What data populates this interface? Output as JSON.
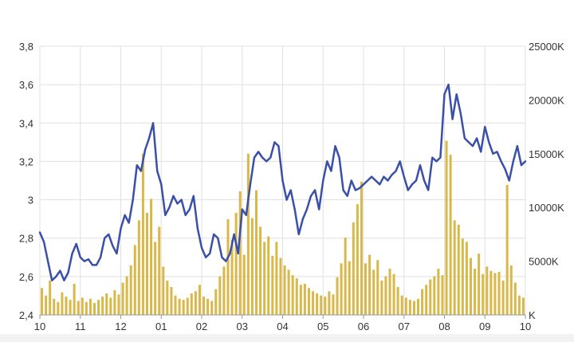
{
  "chart_data": {
    "type": "line",
    "title": "",
    "xlabel": "",
    "ylabel": "",
    "grid": true,
    "legend": "none",
    "x_tick_labels": [
      "10",
      "11",
      "12",
      "01",
      "02",
      "03",
      "04",
      "05",
      "06",
      "07",
      "08",
      "09",
      "10"
    ],
    "x_range": [
      0,
      12
    ],
    "left_axis": {
      "ylim": [
        2.4,
        3.8
      ],
      "tick_labels": [
        "2,4",
        "2,6",
        "2,8",
        "3",
        "3,2",
        "3,4",
        "3,6",
        "3,8"
      ],
      "tick_values": [
        2.4,
        2.6,
        2.8,
        3.0,
        3.2,
        3.4,
        3.6,
        3.8
      ]
    },
    "right_axis": {
      "ylim": [
        0,
        25000
      ],
      "tick_labels": [
        "K",
        "5000K",
        "10000K",
        "15000K",
        "20000K",
        "25000K"
      ],
      "tick_values": [
        0,
        5000,
        10000,
        15000,
        20000,
        25000
      ]
    },
    "colors": {
      "line": "#3a4fa8",
      "bars": "#d9b84a",
      "grid": "#e0e0e0"
    },
    "series": [
      {
        "kind": "line",
        "axis": "left",
        "x": [
          0,
          0.1,
          0.2,
          0.3,
          0.4,
          0.5,
          0.6,
          0.7,
          0.8,
          0.9,
          1.0,
          1.1,
          1.2,
          1.3,
          1.4,
          1.5,
          1.6,
          1.7,
          1.8,
          1.9,
          2.0,
          2.1,
          2.2,
          2.3,
          2.4,
          2.5,
          2.6,
          2.7,
          2.8,
          2.9,
          3.0,
          3.1,
          3.2,
          3.3,
          3.4,
          3.5,
          3.6,
          3.7,
          3.8,
          3.9,
          4.0,
          4.1,
          4.2,
          4.3,
          4.4,
          4.5,
          4.6,
          4.7,
          4.8,
          4.9,
          5.0,
          5.1,
          5.2,
          5.3,
          5.4,
          5.5,
          5.6,
          5.7,
          5.8,
          5.9,
          6.0,
          6.1,
          6.2,
          6.3,
          6.4,
          6.5,
          6.6,
          6.7,
          6.8,
          6.9,
          7.0,
          7.1,
          7.2,
          7.3,
          7.4,
          7.5,
          7.6,
          7.7,
          7.8,
          7.9,
          8.0,
          8.1,
          8.2,
          8.3,
          8.4,
          8.5,
          8.6,
          8.7,
          8.8,
          8.9,
          9.0,
          9.1,
          9.2,
          9.3,
          9.4,
          9.5,
          9.6,
          9.7,
          9.8,
          9.9,
          10.0,
          10.1,
          10.2,
          10.3,
          10.4,
          10.5,
          10.6,
          10.7,
          10.8,
          10.9,
          11.0,
          11.1,
          11.2,
          11.3,
          11.4,
          11.5,
          11.6,
          11.7,
          11.8,
          11.9,
          12.0
        ],
        "values": [
          2.83,
          2.78,
          2.68,
          2.58,
          2.6,
          2.63,
          2.58,
          2.62,
          2.72,
          2.77,
          2.7,
          2.68,
          2.69,
          2.66,
          2.66,
          2.7,
          2.8,
          2.82,
          2.76,
          2.72,
          2.85,
          2.92,
          2.88,
          3.0,
          3.18,
          3.15,
          3.26,
          3.32,
          3.4,
          3.15,
          3.08,
          2.92,
          2.96,
          3.02,
          2.98,
          3.0,
          2.92,
          2.95,
          3.02,
          2.85,
          2.75,
          2.7,
          2.72,
          2.82,
          2.8,
          2.7,
          2.68,
          2.72,
          2.82,
          2.72,
          2.95,
          2.92,
          3.08,
          3.22,
          3.25,
          3.22,
          3.2,
          3.22,
          3.3,
          3.28,
          3.1,
          3.0,
          3.05,
          2.95,
          2.82,
          2.9,
          2.95,
          3.02,
          3.05,
          2.95,
          3.1,
          3.2,
          3.15,
          3.28,
          3.22,
          3.05,
          3.02,
          3.1,
          3.05,
          3.06,
          3.08,
          3.1,
          3.12,
          3.1,
          3.08,
          3.12,
          3.1,
          3.13,
          3.15,
          3.2,
          3.12,
          3.05,
          3.08,
          3.1,
          3.18,
          3.1,
          3.05,
          3.22,
          3.2,
          3.22,
          3.55,
          3.6,
          3.42,
          3.55,
          3.45,
          3.32,
          3.3,
          3.28,
          3.32,
          3.25,
          3.38,
          3.3,
          3.24,
          3.25,
          3.2,
          3.16,
          3.1,
          3.2,
          3.28,
          3.18,
          3.2
        ]
      },
      {
        "kind": "bar",
        "axis": "right",
        "x": [
          0.05,
          0.15,
          0.25,
          0.35,
          0.45,
          0.55,
          0.65,
          0.75,
          0.85,
          0.95,
          1.05,
          1.15,
          1.25,
          1.35,
          1.45,
          1.55,
          1.65,
          1.75,
          1.85,
          1.95,
          2.05,
          2.15,
          2.25,
          2.35,
          2.45,
          2.55,
          2.65,
          2.75,
          2.85,
          2.95,
          3.05,
          3.15,
          3.25,
          3.35,
          3.45,
          3.55,
          3.65,
          3.75,
          3.85,
          3.95,
          4.05,
          4.15,
          4.25,
          4.35,
          4.45,
          4.55,
          4.65,
          4.75,
          4.85,
          4.95,
          5.05,
          5.15,
          5.25,
          5.35,
          5.45,
          5.55,
          5.65,
          5.75,
          5.85,
          5.95,
          6.05,
          6.15,
          6.25,
          6.35,
          6.45,
          6.55,
          6.65,
          6.75,
          6.85,
          6.95,
          7.05,
          7.15,
          7.25,
          7.35,
          7.45,
          7.55,
          7.65,
          7.75,
          7.85,
          7.95,
          8.05,
          8.15,
          8.25,
          8.35,
          8.45,
          8.55,
          8.65,
          8.75,
          8.85,
          8.95,
          9.05,
          9.15,
          9.25,
          9.35,
          9.45,
          9.55,
          9.65,
          9.75,
          9.85,
          9.95,
          10.05,
          10.15,
          10.25,
          10.35,
          10.45,
          10.55,
          10.65,
          10.75,
          10.85,
          10.95,
          11.05,
          11.15,
          11.25,
          11.35,
          11.45,
          11.55,
          11.65,
          11.75,
          11.85,
          11.95
        ],
        "values": [
          2500,
          1800,
          3200,
          1500,
          1200,
          2100,
          1700,
          1400,
          2900,
          1300,
          1600,
          1200,
          1500,
          1100,
          1400,
          1700,
          2000,
          1600,
          2300,
          1900,
          3000,
          3600,
          4600,
          6500,
          8800,
          15000,
          9500,
          10800,
          6800,
          8200,
          4500,
          3200,
          2600,
          1800,
          1500,
          1400,
          1600,
          2000,
          2200,
          2800,
          1700,
          1500,
          1300,
          2400,
          3600,
          4500,
          8900,
          7000,
          9500,
          11500,
          5600,
          15000,
          9000,
          11600,
          8200,
          6800,
          7300,
          5500,
          6800,
          5300,
          4600,
          4200,
          3700,
          3400,
          2800,
          2900,
          2500,
          2200,
          2000,
          1800,
          1700,
          2200,
          1900,
          3500,
          4800,
          7200,
          5000,
          8600,
          10300,
          12400,
          4800,
          5600,
          4200,
          5100,
          3200,
          3600,
          4300,
          3800,
          2600,
          1800,
          1600,
          1400,
          1300,
          1500,
          2400,
          2800,
          3300,
          3600,
          4300,
          3700,
          16200,
          14900,
          8800,
          8400,
          7100,
          6800,
          5300,
          4300,
          5700,
          3800,
          4500,
          4100,
          3900,
          4000,
          3200,
          12100,
          4600,
          3000,
          1800,
          1600
        ]
      }
    ]
  }
}
